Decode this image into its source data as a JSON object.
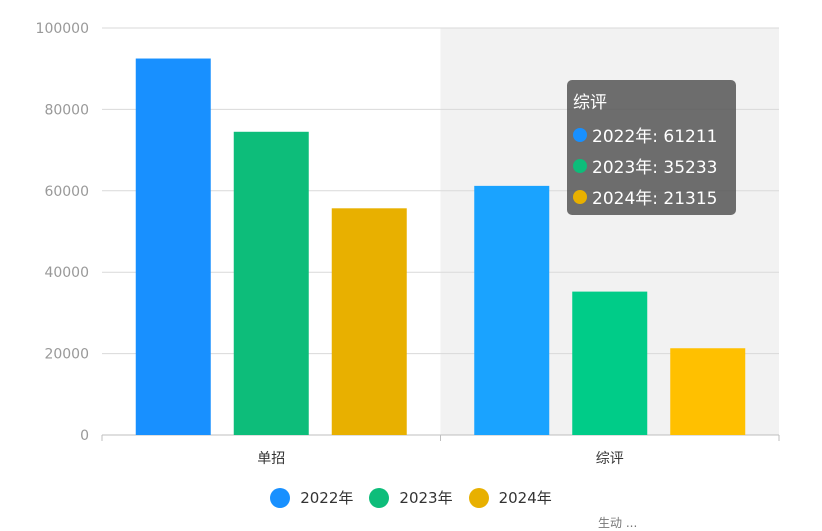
{
  "chart_data": {
    "type": "bar",
    "categories": [
      "单招",
      "综评"
    ],
    "series": [
      {
        "name": "2022年",
        "values": [
          92500,
          61211
        ],
        "color": "#1890ff"
      },
      {
        "name": "2023年",
        "values": [
          74500,
          35233
        ],
        "color": "#0dbd7a"
      },
      {
        "name": "2024年",
        "values": [
          55700,
          21315
        ],
        "color": "#e8b000"
      }
    ],
    "highlight_series_colors": [
      "#1aa3ff",
      "#00cc88",
      "#ffc000"
    ],
    "ylim": [
      0,
      100000
    ],
    "yticks": [
      "0",
      "20000",
      "40000",
      "60000",
      "80000",
      "100000"
    ],
    "ytick_values": [
      0,
      20000,
      40000,
      60000,
      80000,
      100000
    ],
    "grid": true,
    "legend_position": "bottom",
    "highlighted_category": "综评"
  },
  "tooltip": {
    "title": "综评",
    "rows": [
      {
        "label": "2022年: 61211",
        "color": "#1890ff"
      },
      {
        "label": "2023年: 35233",
        "color": "#0dbd7a"
      },
      {
        "label": "2024年: 21315",
        "color": "#e8b000"
      }
    ]
  },
  "footnote": "生动 ..."
}
